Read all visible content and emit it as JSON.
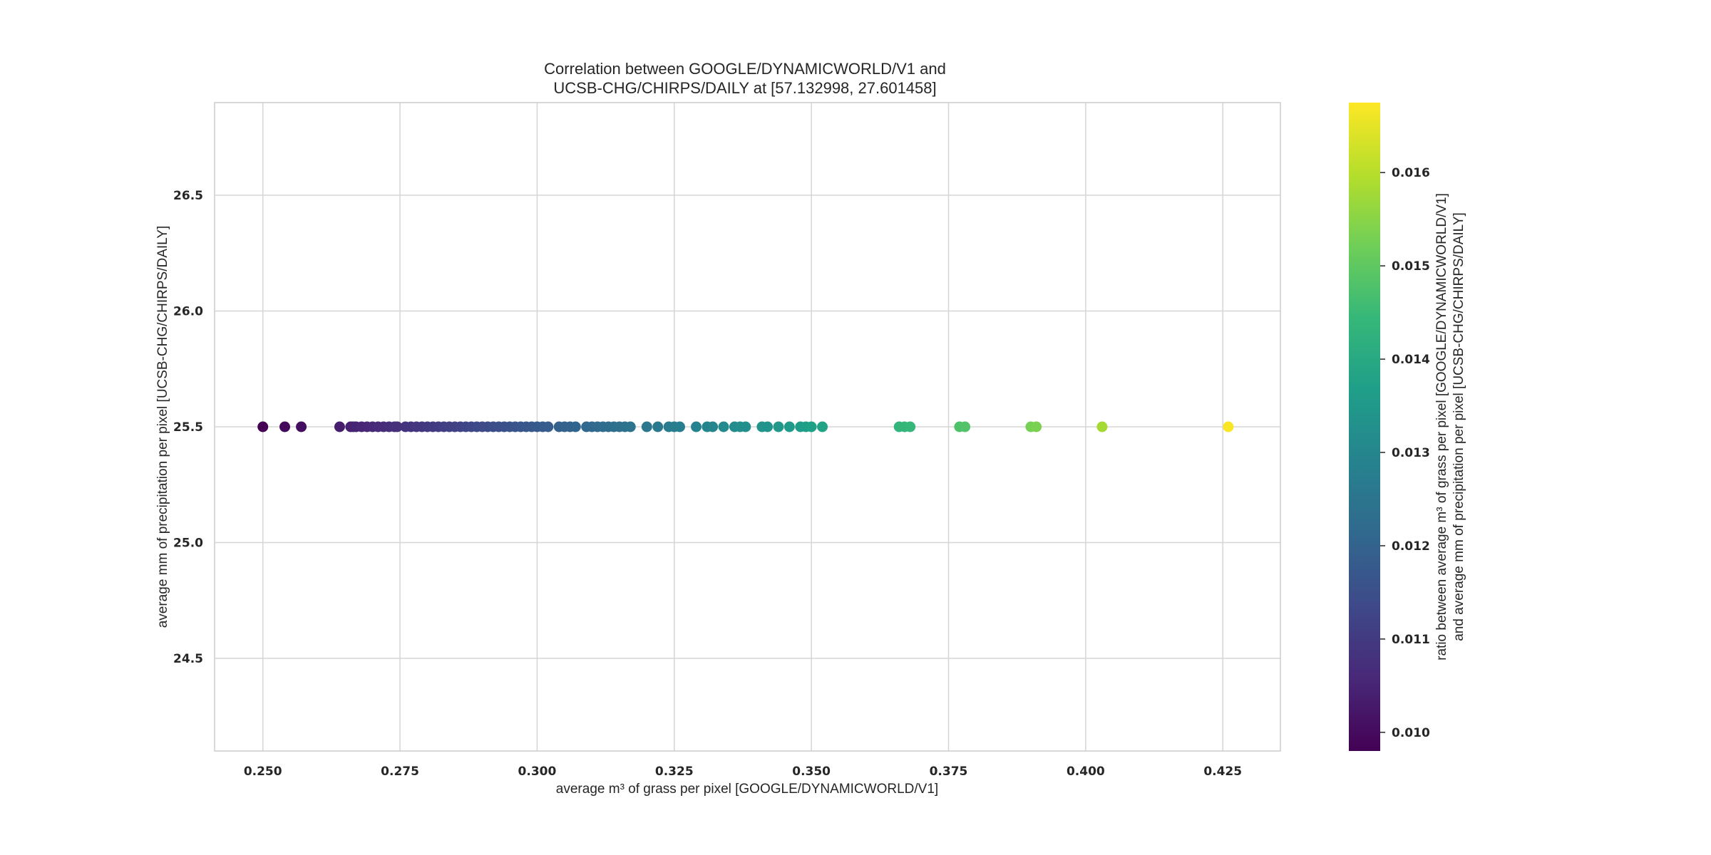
{
  "chart_data": {
    "type": "scatter",
    "title_lines": [
      "Correlation between GOOGLE/DYNAMICWORLD/V1 and",
      "UCSB-CHG/CHIRPS/DAILY at [57.132998, 27.601458]"
    ],
    "xlabel": "average m³ of grass per pixel [GOOGLE/DYNAMICWORLD/V1]",
    "ylabel": "average mm of precipitation per pixel [UCSB-CHG/CHIRPS/DAILY]",
    "colorbar_label_lines": [
      "ratio between average m³ of grass per pixel [GOOGLE/DYNAMICWORLD/V1]",
      "and average mm of precipitation per pixel [UCSB-CHG/CHIRPS/DAILY]"
    ],
    "xlim": [
      0.2412,
      0.4355
    ],
    "ylim": [
      24.1,
      26.9
    ],
    "x_ticks": [
      0.25,
      0.275,
      0.3,
      0.325,
      0.35,
      0.375,
      0.4,
      0.425
    ],
    "x_tick_labels": [
      "0.250",
      "0.275",
      "0.300",
      "0.325",
      "0.350",
      "0.375",
      "0.400",
      "0.425"
    ],
    "y_ticks": [
      24.5,
      25.0,
      25.5,
      26.0,
      26.5
    ],
    "y_tick_labels": [
      "24.5",
      "25.0",
      "25.5",
      "26.0",
      "26.5"
    ],
    "colorbar_range": [
      0.0098,
      0.01675
    ],
    "colorbar_ticks": [
      0.01,
      0.011,
      0.012,
      0.013,
      0.014,
      0.015,
      0.016
    ],
    "colorbar_tick_labels": [
      "0.010",
      "0.011",
      "0.012",
      "0.013",
      "0.014",
      "0.015",
      "0.016"
    ],
    "colormap": "viridis",
    "colormap_stops": [
      "#440154",
      "#482878",
      "#3e4989",
      "#31688e",
      "#26828e",
      "#1f9e89",
      "#35b779",
      "#6ece58",
      "#b5de2b",
      "#fde725"
    ],
    "grid": true,
    "y_value": 25.5,
    "x_values": [
      0.25,
      0.254,
      0.257,
      0.264,
      0.266,
      0.2665,
      0.267,
      0.268,
      0.269,
      0.27,
      0.271,
      0.272,
      0.273,
      0.274,
      0.2745,
      0.276,
      0.277,
      0.278,
      0.279,
      0.28,
      0.281,
      0.282,
      0.283,
      0.284,
      0.285,
      0.286,
      0.287,
      0.288,
      0.289,
      0.29,
      0.291,
      0.292,
      0.293,
      0.294,
      0.295,
      0.296,
      0.297,
      0.298,
      0.299,
      0.3,
      0.301,
      0.302,
      0.304,
      0.305,
      0.306,
      0.307,
      0.309,
      0.31,
      0.311,
      0.312,
      0.313,
      0.314,
      0.315,
      0.316,
      0.317,
      0.32,
      0.322,
      0.324,
      0.325,
      0.326,
      0.329,
      0.331,
      0.332,
      0.334,
      0.336,
      0.337,
      0.338,
      0.341,
      0.342,
      0.344,
      0.346,
      0.348,
      0.349,
      0.35,
      0.352,
      0.366,
      0.367,
      0.368,
      0.377,
      0.378,
      0.39,
      0.391,
      0.403,
      0.426
    ]
  }
}
